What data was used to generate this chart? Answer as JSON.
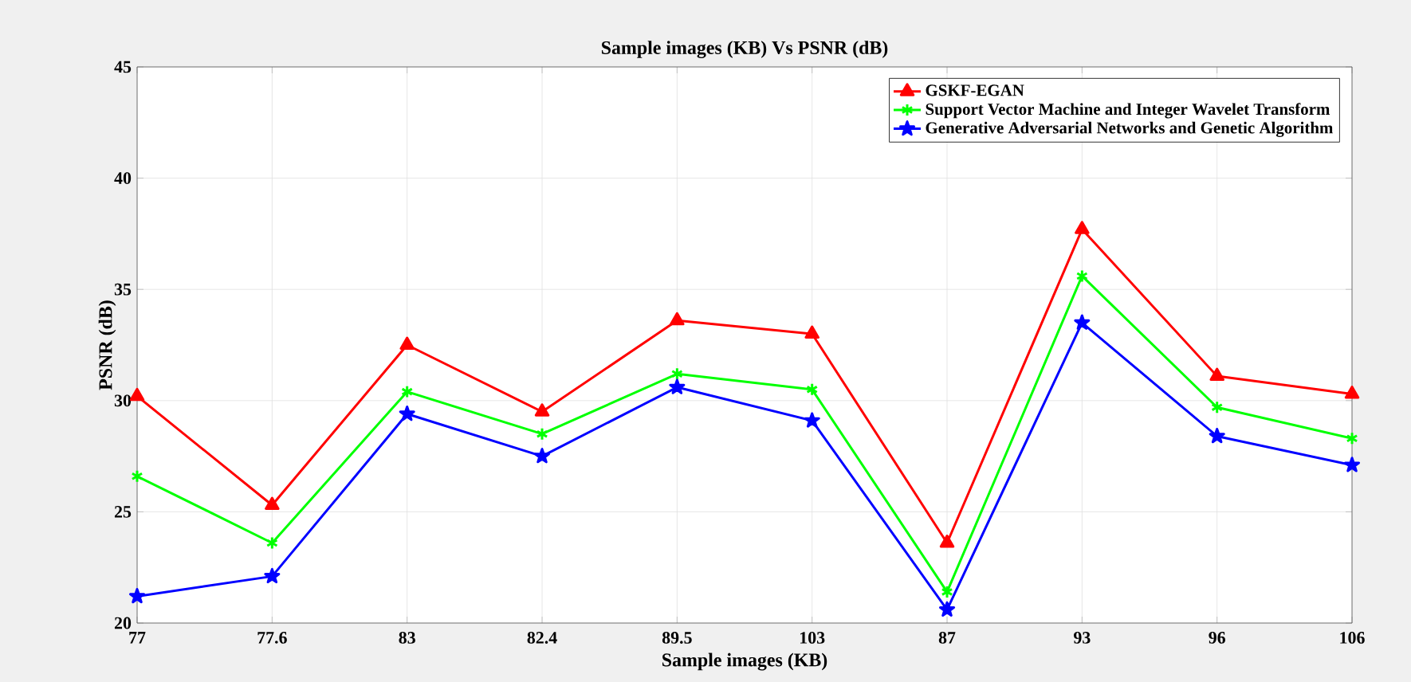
{
  "chart_data": {
    "type": "line",
    "title": "Sample images (KB)  Vs PSNR (dB)",
    "xlabel": "Sample images (KB)",
    "ylabel": "PSNR (dB)",
    "categories": [
      "77",
      "77.6",
      "83",
      "82.4",
      "89.5",
      "103",
      "87",
      "93",
      "96",
      "106"
    ],
    "ylim": [
      20,
      45
    ],
    "yticks": [
      20,
      25,
      30,
      35,
      40,
      45
    ],
    "grid": true,
    "legend": "top right",
    "line_style": "solid",
    "series": [
      {
        "name": "GSKF-EGAN",
        "color": "#ff0000",
        "marker": "triangle",
        "values": [
          30.2,
          25.3,
          32.5,
          29.5,
          33.6,
          33.0,
          23.6,
          37.7,
          31.1,
          30.3
        ]
      },
      {
        "name": "Support Vector Machine and Integer Wavelet Transform",
        "color": "#00ff00",
        "marker": "cross",
        "values": [
          26.6,
          23.6,
          30.4,
          28.5,
          31.2,
          30.5,
          21.4,
          35.6,
          29.7,
          28.3
        ]
      },
      {
        "name": "Generative Adversarial Networks and Genetic Algorithm",
        "color": "#0000ff",
        "marker": "star",
        "values": [
          21.2,
          22.1,
          29.4,
          27.5,
          30.6,
          29.1,
          20.6,
          33.5,
          28.4,
          27.1
        ]
      }
    ]
  }
}
